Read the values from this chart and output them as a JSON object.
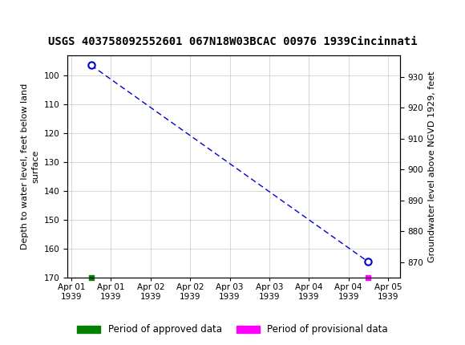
{
  "title": "USGS 403758092552601 067N18W03BCAC 00976 1939Cincinnati",
  "ylabel_left": "Depth to water level, feet below land\nsurface",
  "ylabel_right": "Groundwater level above NGVD 1929, feet",
  "ylim_left": [
    170,
    93
  ],
  "ylim_right": [
    865,
    937
  ],
  "yticks_left": [
    100,
    110,
    120,
    130,
    140,
    150,
    160,
    170
  ],
  "yticks_right": [
    870,
    880,
    890,
    900,
    910,
    920,
    930
  ],
  "xtick_positions": [
    0,
    0.5,
    1.0,
    1.5,
    2.0,
    2.5,
    3.0,
    3.5,
    4.0
  ],
  "xtick_labels": [
    "Apr 01\n1939",
    "Apr 01\n1939",
    "Apr 02\n1939",
    "Apr 02\n1939",
    "Apr 03\n1939",
    "Apr 03\n1939",
    "Apr 04\n1939",
    "Apr 04\n1939",
    "Apr 05\n1939"
  ],
  "xlim": [
    -0.05,
    4.15
  ],
  "data_x": [
    0.25,
    3.75
  ],
  "data_y": [
    96.5,
    164.5
  ],
  "green_x": 0.25,
  "green_y": 170,
  "magenta_x": 3.75,
  "magenta_y": 170,
  "line_color": "#0000CC",
  "marker_color": "#0000CC",
  "approved_color": "#008000",
  "provisional_color": "#FF00FF",
  "background_color": "#FFFFFF",
  "grid_color": "#C8C8C8",
  "header_bg_color": "#1B6B3A",
  "title_fontsize": 10,
  "axis_fontsize": 8,
  "tick_fontsize": 7.5,
  "legend_fontsize": 8.5
}
